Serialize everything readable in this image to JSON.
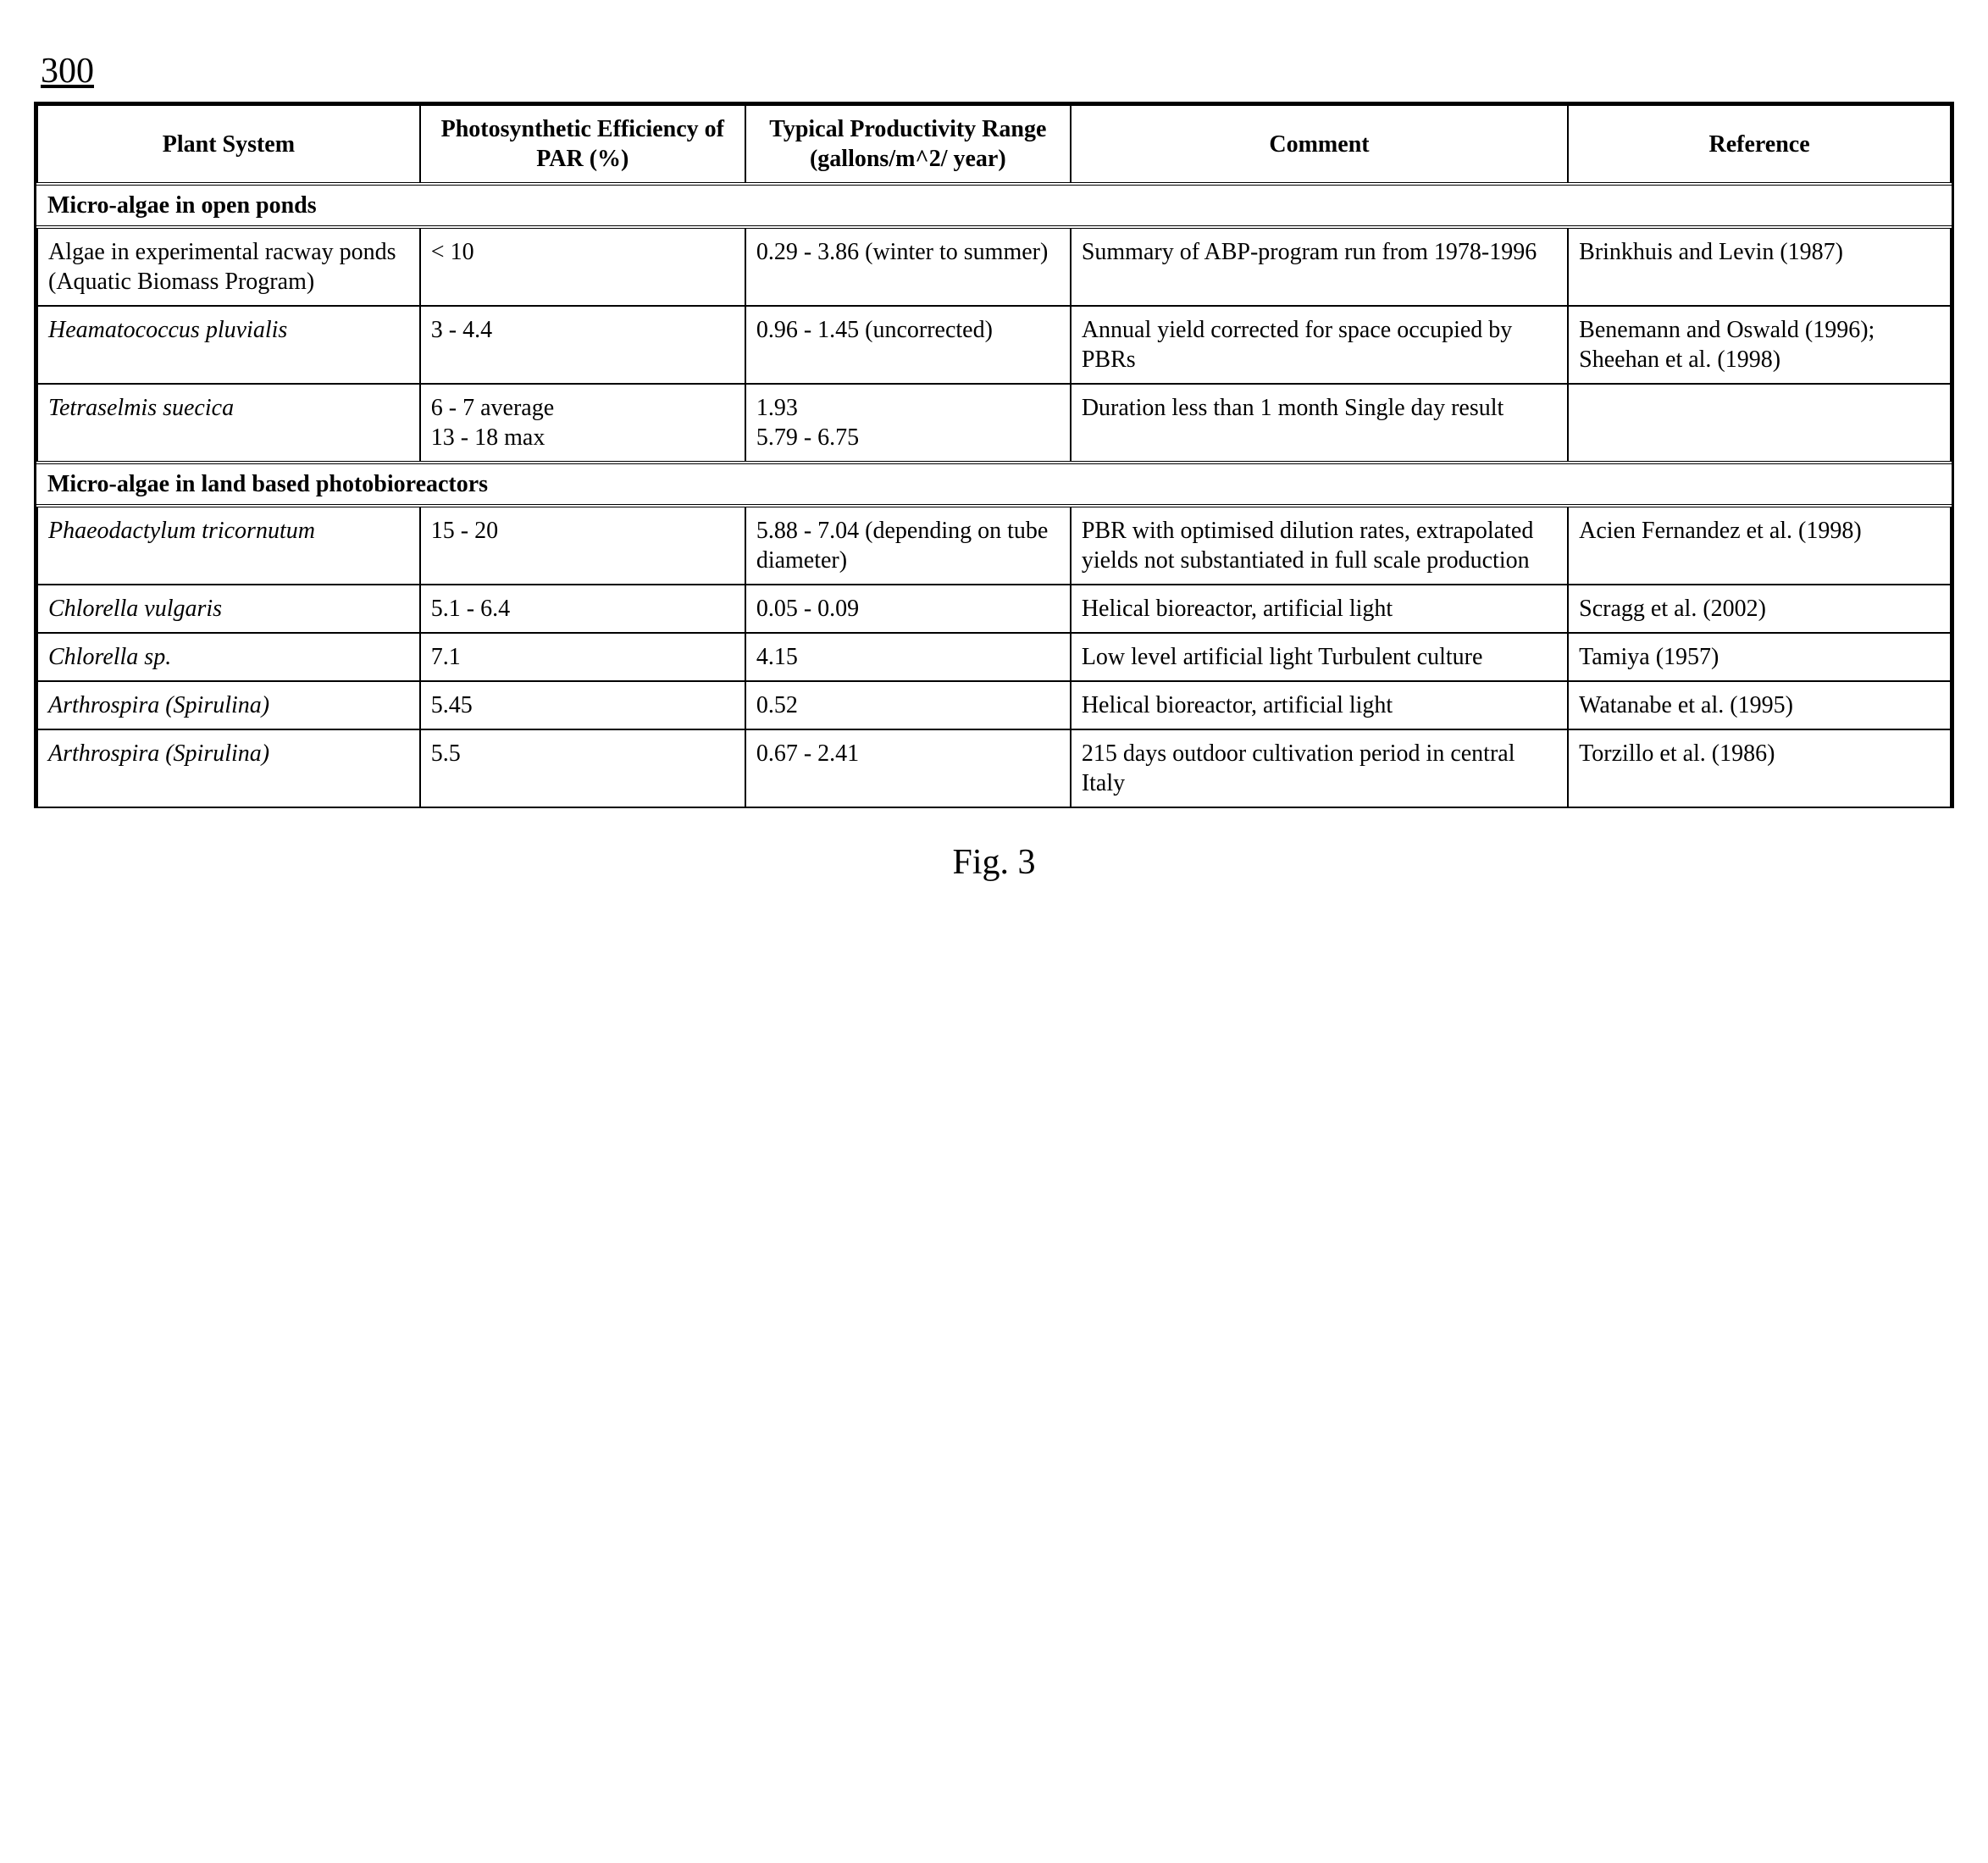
{
  "figure_number": "300",
  "caption": "Fig. 3",
  "columns": [
    "Plant System",
    "Photosynthetic Efficiency of PAR (%)",
    "Typical Productivity Range (gallons/m^2/ year)",
    "Comment",
    "Reference"
  ],
  "sections": [
    {
      "title": "Micro-algae in open ponds",
      "rows": [
        {
          "plant_system": "Algae in experimental racway ponds (Aquatic Biomass Program)",
          "plant_italic": false,
          "efficiency": "< 10",
          "productivity": "0.29 - 3.86 (winter to summer)",
          "comment": "Summary of ABP-program run from 1978-1996",
          "reference": "Brinkhuis and Levin (1987)"
        },
        {
          "plant_system": "Heamatococcus pluvialis",
          "plant_italic": true,
          "efficiency": "3 - 4.4",
          "productivity": "0.96 - 1.45 (uncorrected)",
          "comment": "Annual yield corrected for space occupied by PBRs",
          "reference": "Benemann and Oswald (1996); Sheehan et al. (1998)"
        },
        {
          "plant_system": "Tetraselmis suecica",
          "plant_italic": true,
          "efficiency": "6 - 7 average\n13 - 18 max",
          "productivity": "1.93\n5.79 - 6.75",
          "comment": "Duration less than 1 month     Single day result",
          "reference": ""
        }
      ]
    },
    {
      "title": "Micro-algae in land based photobioreactors",
      "rows": [
        {
          "plant_system": "Phaeodactylum tricornutum",
          "plant_italic": true,
          "efficiency": "15 - 20",
          "productivity": "5.88 - 7.04 (depending on tube diameter)",
          "comment": "PBR with optimised dilution rates, extrapolated yields not substantiated in full scale production",
          "reference": "Acien Fernandez et al. (1998)"
        },
        {
          "plant_system": "Chlorella vulgaris",
          "plant_italic": true,
          "efficiency": "5.1 - 6.4",
          "productivity": "0.05 - 0.09",
          "comment": "Helical bioreactor, artificial light",
          "reference": "Scragg et al. (2002)"
        },
        {
          "plant_system": "Chlorella sp.",
          "plant_italic": true,
          "efficiency": "7.1",
          "productivity": "4.15",
          "comment": "Low level artificial light Turbulent culture",
          "reference": "Tamiya (1957)"
        },
        {
          "plant_system": "Arthrospira (Spirulina)",
          "plant_italic": true,
          "efficiency": "5.45",
          "productivity": "0.52",
          "comment": "Helical bioreactor, artificial light",
          "reference": "Watanabe et al. (1995)"
        },
        {
          "plant_system": "Arthrospira (Spirulina)",
          "plant_italic": true,
          "efficiency": "5.5",
          "productivity": "0.67 - 2.41",
          "comment": "215 days outdoor cultivation period in central Italy",
          "reference": "Torzillo et al. (1986)"
        }
      ]
    }
  ]
}
